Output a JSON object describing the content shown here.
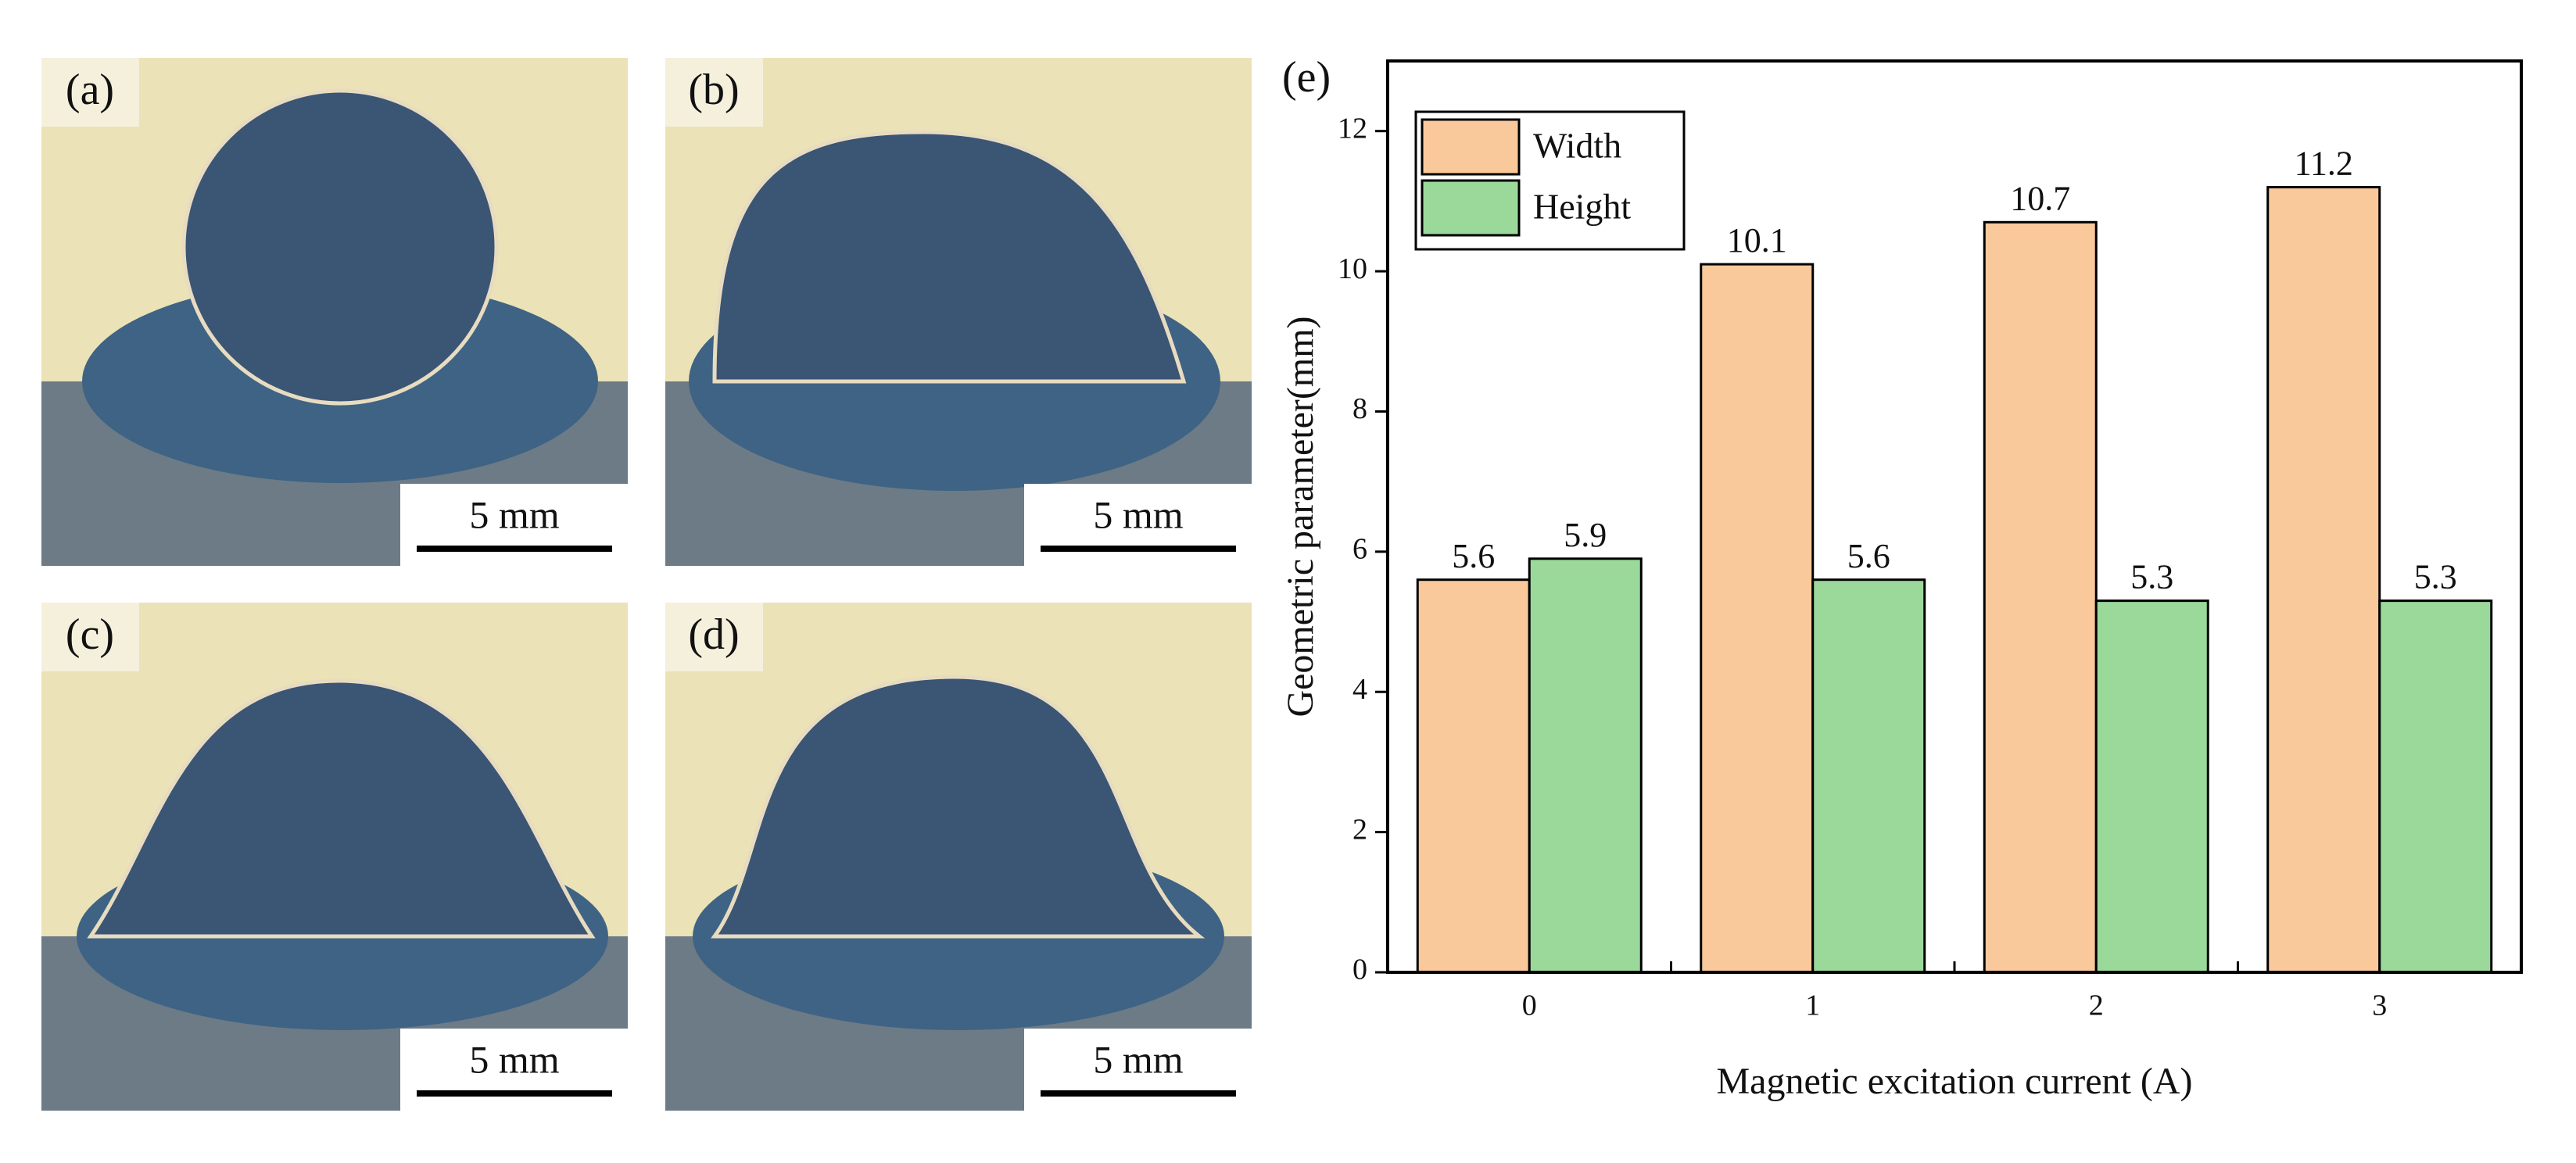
{
  "panels": [
    {
      "label": "(a)",
      "scale_bar": "5 mm"
    },
    {
      "label": "(b)",
      "scale_bar": "5 mm"
    },
    {
      "label": "(c)",
      "scale_bar": "5 mm"
    },
    {
      "label": "(d)",
      "scale_bar": "5 mm"
    }
  ],
  "chart_data": {
    "type": "bar",
    "label": "(e)",
    "x_label": "Magnetic excitation current (A)",
    "y_label": "Geometric parameter(mm)",
    "categories": [
      "0",
      "1",
      "2",
      "3"
    ],
    "series": [
      {
        "name": "Width",
        "color": "#f9c89b",
        "values": [
          5.6,
          10.1,
          10.7,
          11.2
        ]
      },
      {
        "name": "Height",
        "color": "#9ad99a",
        "values": [
          5.9,
          5.6,
          5.3,
          5.3
        ]
      }
    ],
    "ylim": [
      0,
      13
    ],
    "yticks": [
      0,
      2,
      4,
      6,
      8,
      10,
      12
    ],
    "legend": "upper-left",
    "grid": false
  }
}
